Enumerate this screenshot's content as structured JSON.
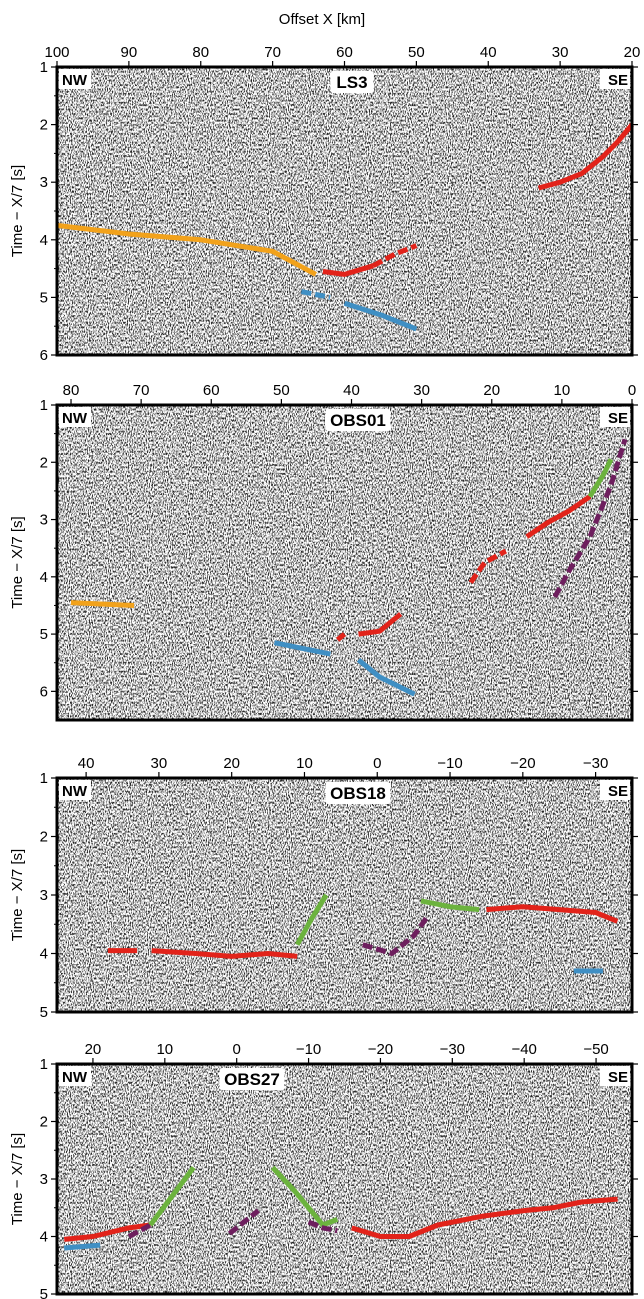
{
  "figure": {
    "x_axis_title": "Offset X [km]",
    "y_axis_title": "Time − X/7 [s]",
    "left_tag": "NW",
    "right_tag": "SE"
  },
  "colors": {
    "red": "#e2231a",
    "orange": "#f2a21b",
    "blue": "#3f8fc4",
    "green": "#6cb33e",
    "purple": "#6e1f5e",
    "frame": "#000000"
  },
  "chart_data": [
    {
      "type": "scatter",
      "title": "LS3",
      "xlabel": "Offset X [km]",
      "ylabel": "Time − X/7 [s]",
      "xlim": [
        100,
        20
      ],
      "ylim": [
        6,
        1
      ],
      "x_ticks": [
        100,
        90,
        80,
        70,
        60,
        50,
        40,
        30,
        20
      ],
      "y_ticks": [
        1,
        2,
        3,
        4,
        5,
        6
      ],
      "series": [
        {
          "color": "orange",
          "style": "solid",
          "points": [
            [
              100,
              3.75
            ],
            [
              90,
              3.9
            ],
            [
              80,
              4.0
            ],
            [
              70,
              4.2
            ],
            [
              64,
              4.6
            ]
          ]
        },
        {
          "color": "red",
          "style": "solid",
          "points": [
            [
              63,
              4.55
            ],
            [
              60,
              4.6
            ],
            [
              56,
              4.45
            ]
          ]
        },
        {
          "color": "red",
          "style": "dashed",
          "points": [
            [
              56,
              4.45
            ],
            [
              53,
              4.25
            ],
            [
              50,
              4.1
            ]
          ]
        },
        {
          "color": "blue",
          "style": "dashed",
          "points": [
            [
              66,
              4.9
            ],
            [
              62,
              5.0
            ]
          ]
        },
        {
          "color": "blue",
          "style": "solid",
          "points": [
            [
              60,
              5.1
            ],
            [
              55,
              5.3
            ],
            [
              50,
              5.55
            ]
          ]
        },
        {
          "color": "red",
          "style": "solid",
          "points": [
            [
              33,
              3.1
            ],
            [
              30,
              3.0
            ],
            [
              27,
              2.85
            ],
            [
              24,
              2.55
            ],
            [
              22,
              2.3
            ],
            [
              20,
              2.0
            ]
          ]
        }
      ]
    },
    {
      "type": "scatter",
      "title": "OBS01",
      "xlabel": "",
      "ylabel": "Time − X/7 [s]",
      "xlim": [
        82,
        0
      ],
      "ylim": [
        6.5,
        1
      ],
      "x_ticks": [
        80,
        70,
        60,
        50,
        40,
        30,
        20,
        10,
        0
      ],
      "y_ticks": [
        1,
        2,
        3,
        4,
        5,
        6
      ],
      "series": [
        {
          "color": "orange",
          "style": "solid",
          "points": [
            [
              80,
              4.45
            ],
            [
              71,
              4.5
            ]
          ]
        },
        {
          "color": "blue",
          "style": "solid",
          "points": [
            [
              51,
              5.15
            ],
            [
              43,
              5.35
            ]
          ]
        },
        {
          "color": "red",
          "style": "dashed",
          "points": [
            [
              42,
              5.1
            ],
            [
              41,
              5.0
            ]
          ]
        },
        {
          "color": "red",
          "style": "solid",
          "points": [
            [
              39,
              5.0
            ],
            [
              36,
              4.95
            ],
            [
              33,
              4.65
            ]
          ]
        },
        {
          "color": "blue",
          "style": "solid",
          "points": [
            [
              39,
              5.45
            ],
            [
              36,
              5.75
            ],
            [
              31,
              6.05
            ]
          ]
        },
        {
          "color": "red",
          "style": "dashed",
          "points": [
            [
              23,
              4.1
            ],
            [
              21,
              3.75
            ],
            [
              18,
              3.55
            ]
          ]
        },
        {
          "color": "red",
          "style": "solid",
          "points": [
            [
              15,
              3.3
            ],
            [
              12,
              3.05
            ],
            [
              9,
              2.85
            ],
            [
              6,
              2.6
            ]
          ]
        },
        {
          "color": "green",
          "style": "solid",
          "points": [
            [
              6,
              2.6
            ],
            [
              4,
              2.2
            ],
            [
              3,
              1.95
            ]
          ]
        },
        {
          "color": "purple",
          "style": "dashed",
          "points": [
            [
              11,
              4.35
            ],
            [
              9,
              3.9
            ],
            [
              6,
              3.3
            ],
            [
              3,
              2.4
            ],
            [
              1,
              1.6
            ]
          ]
        }
      ]
    },
    {
      "type": "scatter",
      "title": "OBS18",
      "xlabel": "",
      "ylabel": "Time − X/7 [s]",
      "xlim": [
        44,
        -35
      ],
      "ylim": [
        5,
        1
      ],
      "x_ticks": [
        40,
        30,
        20,
        10,
        0,
        -10,
        -20,
        -30
      ],
      "y_ticks": [
        1,
        2,
        3,
        4,
        5
      ],
      "series": [
        {
          "color": "red",
          "style": "solid",
          "points": [
            [
              37,
              3.95
            ],
            [
              33,
              3.95
            ]
          ]
        },
        {
          "color": "red",
          "style": "solid",
          "points": [
            [
              31,
              3.95
            ],
            [
              25,
              4.0
            ],
            [
              20,
              4.05
            ],
            [
              15,
              4.0
            ],
            [
              11,
              4.05
            ]
          ]
        },
        {
          "color": "green",
          "style": "solid",
          "points": [
            [
              11,
              3.85
            ],
            [
              9,
              3.4
            ],
            [
              7,
              3.0
            ]
          ]
        },
        {
          "color": "purple",
          "style": "dashed",
          "points": [
            [
              2,
              3.85
            ],
            [
              -2,
              4.0
            ],
            [
              -5,
              3.7
            ],
            [
              -7,
              3.35
            ]
          ]
        },
        {
          "color": "green",
          "style": "solid",
          "points": [
            [
              -6,
              3.1
            ],
            [
              -10,
              3.2
            ],
            [
              -14,
              3.25
            ]
          ]
        },
        {
          "color": "red",
          "style": "solid",
          "points": [
            [
              -15,
              3.25
            ],
            [
              -20,
              3.2
            ],
            [
              -25,
              3.25
            ],
            [
              -30,
              3.3
            ],
            [
              -33,
              3.45
            ]
          ]
        },
        {
          "color": "blue",
          "style": "solid",
          "points": [
            [
              -27,
              4.3
            ],
            [
              -31,
              4.3
            ]
          ]
        }
      ]
    },
    {
      "type": "scatter",
      "title": "OBS27",
      "xlabel": "",
      "ylabel": "Time − X/7 [s]",
      "xlim": [
        25,
        -55
      ],
      "ylim": [
        5,
        1
      ],
      "x_ticks": [
        20,
        10,
        0,
        -10,
        -20,
        -30,
        -40,
        -50
      ],
      "y_ticks": [
        1,
        2,
        3,
        4,
        5
      ],
      "series": [
        {
          "color": "blue",
          "style": "solid",
          "points": [
            [
              24,
              4.2
            ],
            [
              19,
              4.15
            ]
          ]
        },
        {
          "color": "red",
          "style": "solid",
          "points": [
            [
              24,
              4.05
            ],
            [
              20,
              4.0
            ],
            [
              15,
              3.85
            ],
            [
              12,
              3.8
            ]
          ]
        },
        {
          "color": "purple",
          "style": "dashed",
          "points": [
            [
              15,
              4.0
            ],
            [
              12,
              3.8
            ]
          ]
        },
        {
          "color": "green",
          "style": "solid",
          "points": [
            [
              12,
              3.8
            ],
            [
              9,
              3.3
            ],
            [
              6,
              2.8
            ]
          ]
        },
        {
          "color": "purple",
          "style": "dashed",
          "points": [
            [
              1,
              3.95
            ],
            [
              -1,
              3.75
            ],
            [
              -3,
              3.55
            ]
          ]
        },
        {
          "color": "green",
          "style": "solid",
          "points": [
            [
              -5,
              2.8
            ],
            [
              -8,
              3.2
            ],
            [
              -10,
              3.5
            ],
            [
              -12,
              3.8
            ],
            [
              -14,
              3.7
            ]
          ]
        },
        {
          "color": "purple",
          "style": "dashed",
          "points": [
            [
              -10,
              3.75
            ],
            [
              -12,
              3.85
            ],
            [
              -14,
              3.9
            ]
          ]
        },
        {
          "color": "red",
          "style": "solid",
          "points": [
            [
              -16,
              3.85
            ],
            [
              -20,
              4.0
            ],
            [
              -24,
              4.0
            ],
            [
              -28,
              3.8
            ],
            [
              -34,
              3.65
            ],
            [
              -40,
              3.55
            ],
            [
              -44,
              3.5
            ],
            [
              -48,
              3.4
            ],
            [
              -53,
              3.35
            ]
          ]
        }
      ]
    }
  ]
}
